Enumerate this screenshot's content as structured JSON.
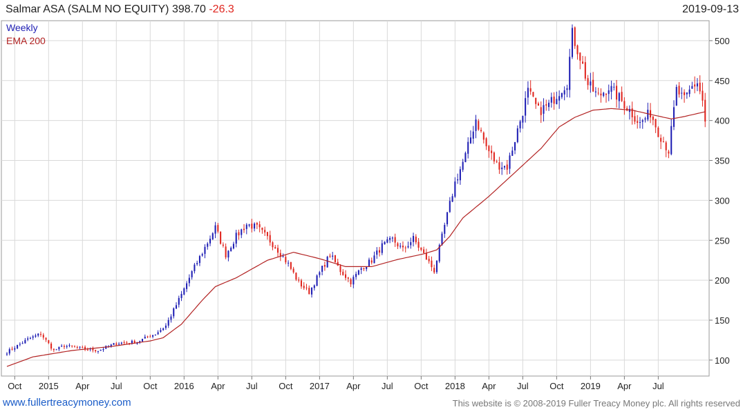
{
  "header": {
    "name": "Salmar ASA (SALM NO EQUITY)",
    "price": "398.70",
    "change": "-26.3",
    "date": "2019-09-13"
  },
  "legend": {
    "series1": "Weekly",
    "series2": "EMA 200"
  },
  "footer": {
    "link": "www.fullertreacymoney.com",
    "copyright": "This website is © 2008-2019 Fuller Treacy Money plc. All rights reserved"
  },
  "colors": {
    "up": "#1f1fb4",
    "down": "#e0261f",
    "ema": "#b22222",
    "grid": "#d9d9d9",
    "accent_change": "#e0261f"
  },
  "chart_data": {
    "type": "candlestick",
    "title": "Salmar ASA (SALM NO EQUITY) 398.70 -26.3",
    "frequency": "Weekly",
    "ylim": [
      80,
      525
    ],
    "yticks": [
      100,
      150,
      200,
      250,
      300,
      350,
      400,
      450,
      500
    ],
    "xticks": [
      "Oct",
      "2015",
      "Apr",
      "Jul",
      "Oct",
      "2016",
      "Apr",
      "Jul",
      "Oct",
      "2017",
      "Apr",
      "Jul",
      "Oct",
      "2018",
      "Apr",
      "Jul",
      "Oct",
      "2019",
      "Apr",
      "Jul"
    ],
    "grid": true,
    "legend_position": "top-left",
    "anchors": [
      [
        0,
        110
      ],
      [
        8,
        126
      ],
      [
        13,
        133
      ],
      [
        18,
        112
      ],
      [
        22,
        118
      ],
      [
        30,
        114
      ],
      [
        35,
        112
      ],
      [
        42,
        121
      ],
      [
        50,
        123
      ],
      [
        57,
        133
      ],
      [
        61,
        143
      ],
      [
        67,
        182
      ],
      [
        71,
        210
      ],
      [
        76,
        241
      ],
      [
        80,
        266
      ],
      [
        84,
        232
      ],
      [
        88,
        255
      ],
      [
        92,
        270
      ],
      [
        96,
        266
      ],
      [
        100,
        253
      ],
      [
        104,
        238
      ],
      [
        108,
        220
      ],
      [
        112,
        197
      ],
      [
        116,
        185
      ],
      [
        121,
        215
      ],
      [
        124,
        232
      ],
      [
        128,
        212
      ],
      [
        132,
        198
      ],
      [
        136,
        215
      ],
      [
        140,
        225
      ],
      [
        144,
        243
      ],
      [
        148,
        251
      ],
      [
        152,
        238
      ],
      [
        156,
        252
      ],
      [
        160,
        232
      ],
      [
        164,
        212
      ],
      [
        168,
        268
      ],
      [
        172,
        322
      ],
      [
        176,
        356
      ],
      [
        180,
        402
      ],
      [
        184,
        367
      ],
      [
        188,
        345
      ],
      [
        192,
        342
      ],
      [
        196,
        388
      ],
      [
        200,
        436
      ],
      [
        204,
        412
      ],
      [
        208,
        419
      ],
      [
        212,
        437
      ],
      [
        215,
        448
      ],
      [
        217,
        508
      ],
      [
        220,
        480
      ],
      [
        223,
        445
      ],
      [
        227,
        430
      ],
      [
        231,
        442
      ],
      [
        235,
        428
      ],
      [
        239,
        413
      ],
      [
        243,
        396
      ],
      [
        247,
        410
      ],
      [
        250,
        386
      ],
      [
        254,
        362
      ],
      [
        257,
        438
      ],
      [
        260,
        425
      ],
      [
        263,
        442
      ],
      [
        265,
        448
      ],
      [
        267,
        425
      ],
      [
        268,
        398.7
      ]
    ],
    "ema_anchors": [
      [
        0,
        92
      ],
      [
        10,
        104
      ],
      [
        25,
        112
      ],
      [
        40,
        117
      ],
      [
        55,
        124
      ],
      [
        60,
        128
      ],
      [
        67,
        145
      ],
      [
        75,
        175
      ],
      [
        80,
        192
      ],
      [
        88,
        203
      ],
      [
        100,
        225
      ],
      [
        110,
        235
      ],
      [
        120,
        227
      ],
      [
        130,
        217
      ],
      [
        140,
        217
      ],
      [
        150,
        226
      ],
      [
        160,
        233
      ],
      [
        165,
        238
      ],
      [
        170,
        255
      ],
      [
        175,
        278
      ],
      [
        185,
        305
      ],
      [
        195,
        335
      ],
      [
        205,
        365
      ],
      [
        212,
        392
      ],
      [
        218,
        404
      ],
      [
        225,
        413
      ],
      [
        232,
        415
      ],
      [
        240,
        413
      ],
      [
        248,
        407
      ],
      [
        255,
        402
      ],
      [
        260,
        405
      ],
      [
        268,
        411
      ]
    ]
  }
}
